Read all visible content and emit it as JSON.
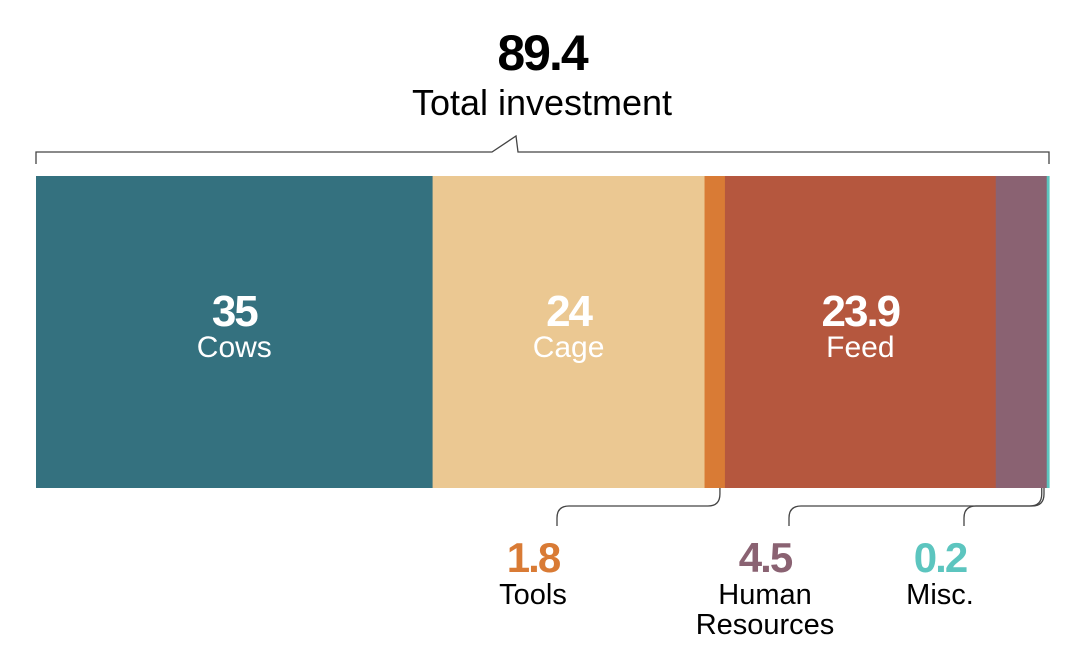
{
  "chart_data": {
    "type": "bar",
    "subtype": "stacked-horizontal-100",
    "total": {
      "value": "89.4",
      "label": "Total investment"
    },
    "categories": [
      "Cows",
      "Cage",
      "Tools",
      "Feed",
      "Human Resources",
      "Misc."
    ],
    "values": [
      35,
      24,
      1.8,
      23.9,
      4.5,
      0.2
    ],
    "value_labels": [
      "35",
      "24",
      "1.8",
      "23.9",
      "4.5",
      "0.2"
    ],
    "colors": [
      "#34717f",
      "#ebc892",
      "#d97b35",
      "#b5573e",
      "#8a6272",
      "#5cc5bf"
    ],
    "inline_labels": [
      "Cows",
      "Cage",
      "Feed"
    ],
    "callout_labels": [
      "Tools",
      "Human Resources",
      "Misc."
    ]
  }
}
